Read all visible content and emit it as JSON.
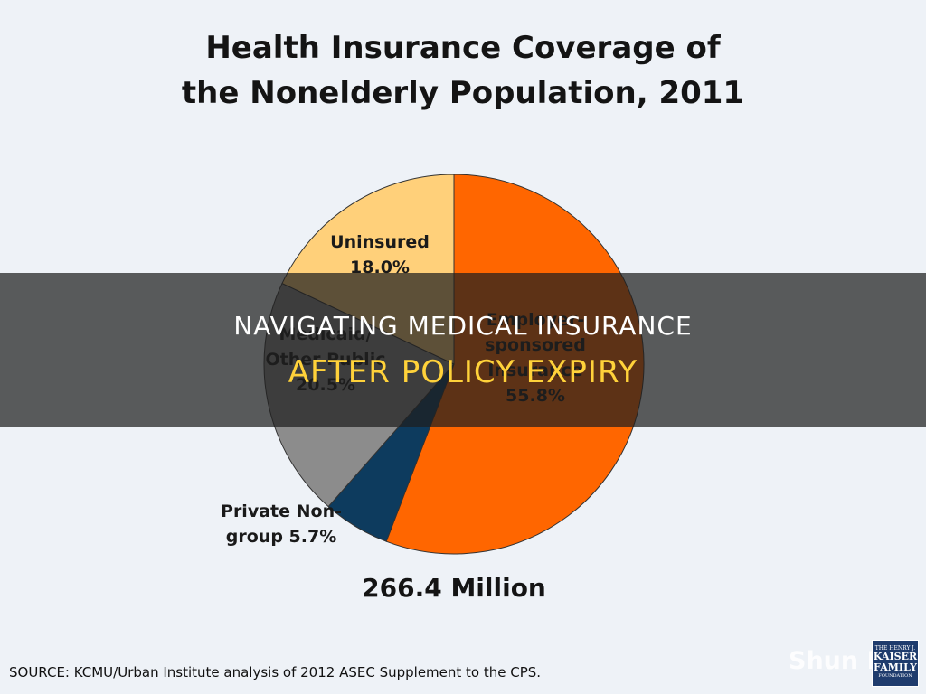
{
  "title": {
    "line1": "Health Insurance Coverage of",
    "line2": "the Nonelderly Population, 2011"
  },
  "chart_data": {
    "type": "pie",
    "title": "Health Insurance Coverage of the Nonelderly Population, 2011",
    "slices": [
      {
        "label": [
          "Employer-",
          "sponsored",
          "Insurance",
          "55.8%"
        ],
        "value": 55.8,
        "color": "#ff6600"
      },
      {
        "label": [
          "Private Non-",
          "group 5.7%"
        ],
        "value": 5.7,
        "color": "#0d3b5e"
      },
      {
        "label": [
          "Medicaid/",
          "Other Public",
          "20.5%"
        ],
        "value": 20.5,
        "color": "#8c8c8c"
      },
      {
        "label": [
          "Uninsured",
          "18.0%"
        ],
        "value": 18.0,
        "color": "#ffd07a"
      }
    ],
    "total_label": "266.4 Million"
  },
  "source": "SOURCE: KCMU/Urban Institute analysis of 2012 ASEC Supplement to the CPS.",
  "banner": {
    "line1": "NAVIGATING MEDICAL INSURANCE",
    "line2": "AFTER POLICY EXPIRY"
  },
  "watermark": "Shun Ins.",
  "logo": {
    "line1": "THE HENRY J.",
    "line2a": "KAISER",
    "line2b": "FAMILY",
    "line3": "FOUNDATION"
  }
}
